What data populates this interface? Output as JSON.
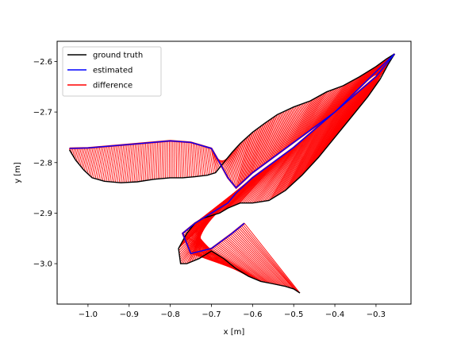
{
  "chart_data": {
    "type": "line",
    "title": "",
    "xlabel": "x [m]",
    "ylabel": "y [m]",
    "xlim": [
      -1.075,
      -0.215
    ],
    "ylim": [
      -3.08,
      -2.56
    ],
    "xticks": [
      -1.0,
      -0.9,
      -0.8,
      -0.7,
      -0.6,
      -0.5,
      -0.4,
      -0.3
    ],
    "xtick_labels": [
      "−1.0",
      "−0.9",
      "−0.8",
      "−0.7",
      "−0.6",
      "−0.5",
      "−0.4",
      "−0.3"
    ],
    "yticks": [
      -2.6,
      -2.7,
      -2.8,
      -2.9,
      -3.0
    ],
    "ytick_labels": [
      "−2.6",
      "−2.7",
      "−2.8",
      "−2.9",
      "−3.0"
    ],
    "legend_position": "top-left",
    "legend": [
      {
        "label": "ground truth",
        "color": "#000000"
      },
      {
        "label": "estimated",
        "color": "#0000ff"
      },
      {
        "label": "difference",
        "color": "#ff0000"
      }
    ],
    "series": [
      {
        "name": "ground truth",
        "color": "#000000",
        "x": [
          -1.045,
          -1.03,
          -1.01,
          -0.99,
          -0.96,
          -0.92,
          -0.88,
          -0.84,
          -0.8,
          -0.77,
          -0.74,
          -0.71,
          -0.69,
          -0.67,
          -0.65,
          -0.63,
          -0.6,
          -0.57,
          -0.54,
          -0.5,
          -0.46,
          -0.42,
          -0.38,
          -0.34,
          -0.3,
          -0.275,
          -0.255,
          -0.27,
          -0.29,
          -0.32,
          -0.36,
          -0.4,
          -0.44,
          -0.48,
          -0.52,
          -0.56,
          -0.6,
          -0.63,
          -0.66,
          -0.68,
          -0.7,
          -0.72,
          -0.74,
          -0.76,
          -0.78,
          -0.775,
          -0.76,
          -0.73,
          -0.7,
          -0.67,
          -0.64,
          -0.61,
          -0.58,
          -0.55,
          -0.52,
          -0.5,
          -0.485
        ],
        "y": [
          -2.775,
          -2.795,
          -2.815,
          -2.83,
          -2.837,
          -2.84,
          -2.838,
          -2.833,
          -2.83,
          -2.83,
          -2.828,
          -2.825,
          -2.82,
          -2.8,
          -2.78,
          -2.762,
          -2.74,
          -2.722,
          -2.705,
          -2.69,
          -2.678,
          -2.66,
          -2.648,
          -2.63,
          -2.61,
          -2.595,
          -2.585,
          -2.605,
          -2.635,
          -2.67,
          -2.71,
          -2.75,
          -2.79,
          -2.825,
          -2.855,
          -2.875,
          -2.88,
          -2.88,
          -2.89,
          -2.9,
          -2.905,
          -2.91,
          -2.92,
          -2.94,
          -2.97,
          -3.0,
          -3.0,
          -2.99,
          -2.975,
          -2.99,
          -3.01,
          -3.025,
          -3.035,
          -3.04,
          -3.045,
          -3.05,
          -3.058
        ]
      },
      {
        "name": "estimated",
        "color": "#0000ff",
        "x": [
          -1.045,
          -1.0,
          -0.9,
          -0.8,
          -0.75,
          -0.7,
          -0.68,
          -0.66,
          -0.64,
          -0.6,
          -0.5,
          -0.4,
          -0.3,
          -0.255,
          -0.3,
          -0.4,
          -0.5,
          -0.6,
          -0.64,
          -0.66,
          -0.7,
          -0.74,
          -0.77,
          -0.75,
          -0.7,
          -0.65,
          -0.62
        ],
        "y": [
          -2.772,
          -2.771,
          -2.764,
          -2.757,
          -2.76,
          -2.772,
          -2.8,
          -2.83,
          -2.85,
          -2.82,
          -2.76,
          -2.7,
          -2.62,
          -2.585,
          -2.63,
          -2.7,
          -2.77,
          -2.83,
          -2.86,
          -2.88,
          -2.9,
          -2.92,
          -2.94,
          -2.98,
          -2.97,
          -2.94,
          -2.92
        ]
      }
    ]
  }
}
